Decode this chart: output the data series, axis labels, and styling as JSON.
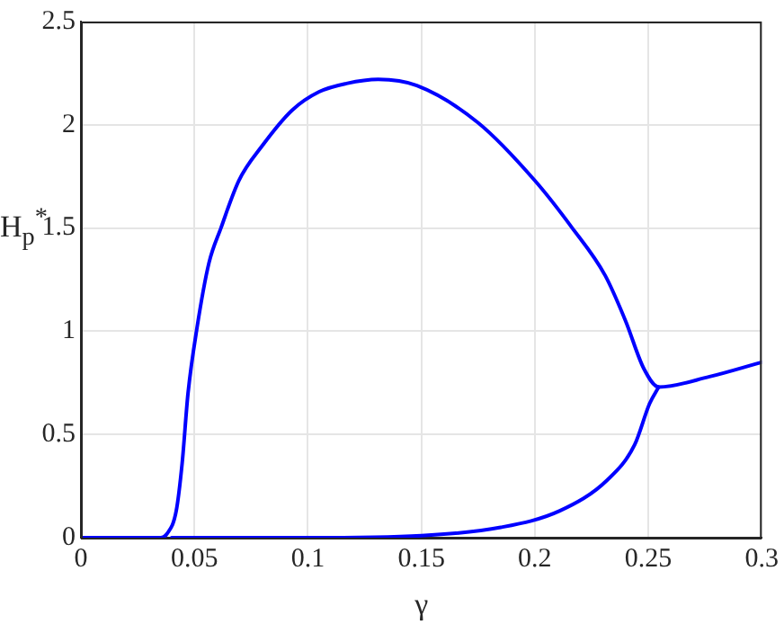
{
  "chart_data": {
    "type": "line",
    "xlabel": "γ",
    "ylabel": "H$_{p}$$^{*}$",
    "xlim": [
      0,
      0.3
    ],
    "xticks": [
      0,
      0.05,
      0.1,
      0.15,
      0.2,
      0.25,
      0.3
    ],
    "ylim": [
      0,
      2.5
    ],
    "yticks": [
      0,
      0.5,
      1,
      1.5,
      2,
      2.5
    ],
    "grid": true,
    "legend": false,
    "marker": "none",
    "line_style": "solid",
    "series": [
      {
        "color": "#0000ff",
        "x": [
          0,
          0.02,
          0.035,
          0.038,
          0.042,
          0.0446,
          0.0472,
          0.0512,
          0.0564,
          0.0617,
          0.0696,
          0.08,
          0.093,
          0.105,
          0.117,
          0.131,
          0.148,
          0.175,
          0.2,
          0.2165,
          0.231,
          0.24,
          0.248,
          0.2546,
          0.277,
          0.3
        ],
        "values": [
          0,
          0,
          0,
          0.02,
          0.13,
          0.36,
          0.7,
          1.02,
          1.33,
          1.5,
          1.73,
          1.9,
          2.07,
          2.16,
          2.2,
          2.22,
          2.19,
          2.01,
          1.73,
          1.5,
          1.27,
          1.05,
          0.82,
          0.73,
          0.78,
          0.85
        ]
      },
      {
        "color": "#0000ff",
        "x": [
          0.04,
          0.1,
          0.15,
          0.185,
          0.211,
          0.232,
          0.244,
          0.2506,
          0.2546
        ],
        "values": [
          0,
          0,
          0.01,
          0.05,
          0.13,
          0.28,
          0.45,
          0.65,
          0.73
        ]
      }
    ]
  }
}
